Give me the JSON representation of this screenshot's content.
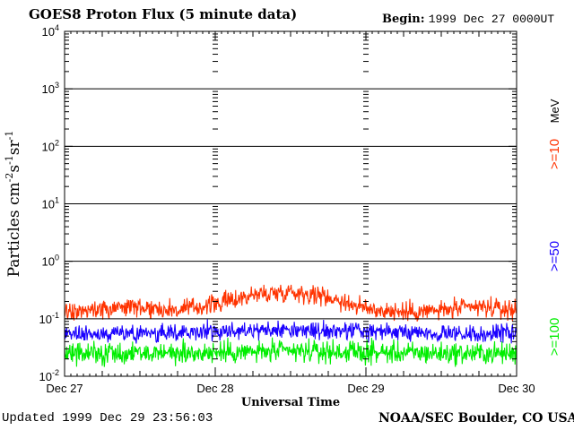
{
  "header": {
    "title": "GOES8 Proton Flux (5 minute data)",
    "begin_label": "Begin:",
    "begin_value": "1999 Dec 27 0000UT"
  },
  "footer": {
    "updated": "Updated 1999 Dec 29 23:56:03",
    "credit": "NOAA/SEC Boulder, CO USA"
  },
  "colors": {
    "background": "#ffffff",
    "axes": "#000000",
    "p10": "#ff3300",
    "p50": "#1a00ff",
    "p100": "#00ee00"
  },
  "chart_data": {
    "type": "line",
    "title": "GOES8 Proton Flux (5 minute data)",
    "xlabel": "Universal Time",
    "ylabel_parts": {
      "base": "Particles cm",
      "sup1": "-2",
      "s": "s",
      "sup2": "-1",
      "sr": "sr",
      "sup3": "-1"
    },
    "x_ticks": [
      "Dec 27",
      "Dec 28",
      "Dec 29",
      "Dec 30"
    ],
    "xlim": [
      0,
      3
    ],
    "y_scale": "log",
    "ylim": [
      0.01,
      10000
    ],
    "y_ticks": [
      {
        "base": "10",
        "exp": "-2",
        "value": 0.01
      },
      {
        "base": "10",
        "exp": "-1",
        "value": 0.1
      },
      {
        "base": "10",
        "exp": "0",
        "value": 1
      },
      {
        "base": "10",
        "exp": "1",
        "value": 10
      },
      {
        "base": "10",
        "exp": "2",
        "value": 100
      },
      {
        "base": "10",
        "exp": "3",
        "value": 1000
      },
      {
        "base": "10",
        "exp": "4",
        "value": 10000
      }
    ],
    "grid": true,
    "legend_position": "right",
    "legend": [
      {
        "label": ">=10",
        "unit": "MeV",
        "color": "#ff3300"
      },
      {
        "label": ">=50",
        "color": "#1a00ff"
      },
      {
        "label": ">=100",
        "color": "#00ee00"
      }
    ],
    "series": [
      {
        "name": ">=10 MeV",
        "color": "#ff3300",
        "x": [
          0,
          0.25,
          0.5,
          0.75,
          1,
          1.25,
          1.5,
          1.75,
          2,
          2.25,
          2.5,
          2.75,
          3
        ],
        "y": [
          0.13,
          0.15,
          0.16,
          0.14,
          0.18,
          0.26,
          0.3,
          0.24,
          0.15,
          0.13,
          0.14,
          0.16,
          0.14
        ],
        "noise_decades": 0.25
      },
      {
        "name": ">=50",
        "color": "#1a00ff",
        "x": [
          0,
          0.5,
          1,
          1.5,
          2,
          2.5,
          3
        ],
        "y": [
          0.055,
          0.055,
          0.06,
          0.065,
          0.06,
          0.055,
          0.055
        ],
        "noise_decades": 0.22
      },
      {
        "name": ">=100",
        "color": "#00ee00",
        "x": [
          0,
          0.5,
          1,
          1.5,
          2,
          2.5,
          3
        ],
        "y": [
          0.025,
          0.025,
          0.026,
          0.027,
          0.026,
          0.025,
          0.025
        ],
        "noise_decades": 0.28
      }
    ]
  }
}
